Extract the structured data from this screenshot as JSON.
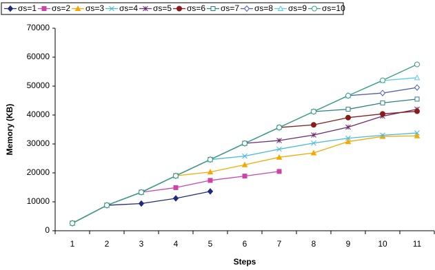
{
  "chart_data": {
    "type": "line",
    "x_label": "Steps",
    "y_label": "Memory (KB)",
    "categories": [
      "1",
      "2",
      "3",
      "4",
      "5",
      "6",
      "7",
      "8",
      "9",
      "10",
      "11"
    ],
    "ylim": [
      0,
      70000
    ],
    "yticks": [
      0,
      10000,
      20000,
      30000,
      40000,
      50000,
      60000,
      70000
    ],
    "grid": false,
    "legend": "top",
    "series": [
      {
        "name": "σs=1",
        "color": "#1f2a7a",
        "marker": "diamond-filled",
        "values": [
          2600,
          8800,
          9400,
          11200,
          13600,
          null,
          null,
          null,
          null,
          null,
          null
        ]
      },
      {
        "name": "σs=2",
        "color": "#cc44aa",
        "marker": "square-filled",
        "values": [
          2600,
          8800,
          13300,
          14900,
          17400,
          18900,
          20500,
          null,
          null,
          null,
          null
        ]
      },
      {
        "name": "σs=3",
        "color": "#f5a800",
        "marker": "triangle-filled",
        "values": [
          2600,
          8800,
          13300,
          19000,
          20300,
          22800,
          25400,
          26900,
          30800,
          32600,
          32800
        ]
      },
      {
        "name": "σs=4",
        "color": "#44bbdd",
        "marker": "x",
        "values": [
          2600,
          8800,
          13300,
          19000,
          24600,
          25800,
          28200,
          30300,
          32000,
          33000,
          33800
        ]
      },
      {
        "name": "σs=5",
        "color": "#6b2a6b",
        "marker": "star",
        "values": [
          2600,
          8800,
          13300,
          19000,
          24600,
          30200,
          31200,
          33100,
          35800,
          39600,
          42000
        ]
      },
      {
        "name": "σs=6",
        "color": "#8b1a1a",
        "marker": "circle-filled",
        "values": [
          2600,
          8800,
          13300,
          19000,
          24600,
          30200,
          35700,
          36600,
          39100,
          40400,
          41300
        ]
      },
      {
        "name": "σs=7",
        "color": "#2a8080",
        "marker": "square-open",
        "values": [
          2600,
          8800,
          13300,
          19000,
          24600,
          30200,
          35700,
          41200,
          42000,
          44200,
          45500
        ]
      },
      {
        "name": "σs=8",
        "color": "#4a5ab5",
        "marker": "diamond-open",
        "values": [
          2600,
          8800,
          13300,
          19000,
          24600,
          30200,
          35700,
          41200,
          46700,
          47600,
          49500
        ]
      },
      {
        "name": "σs=9",
        "color": "#55ccee",
        "marker": "triangle-open",
        "values": [
          2600,
          8800,
          13300,
          19000,
          24600,
          30200,
          35700,
          41200,
          46700,
          51900,
          52900
        ]
      },
      {
        "name": "σs=10",
        "color": "#3aa07a",
        "marker": "circle-open",
        "values": [
          2600,
          8800,
          13300,
          19000,
          24600,
          30200,
          35700,
          41200,
          46700,
          52000,
          57500
        ]
      }
    ]
  }
}
